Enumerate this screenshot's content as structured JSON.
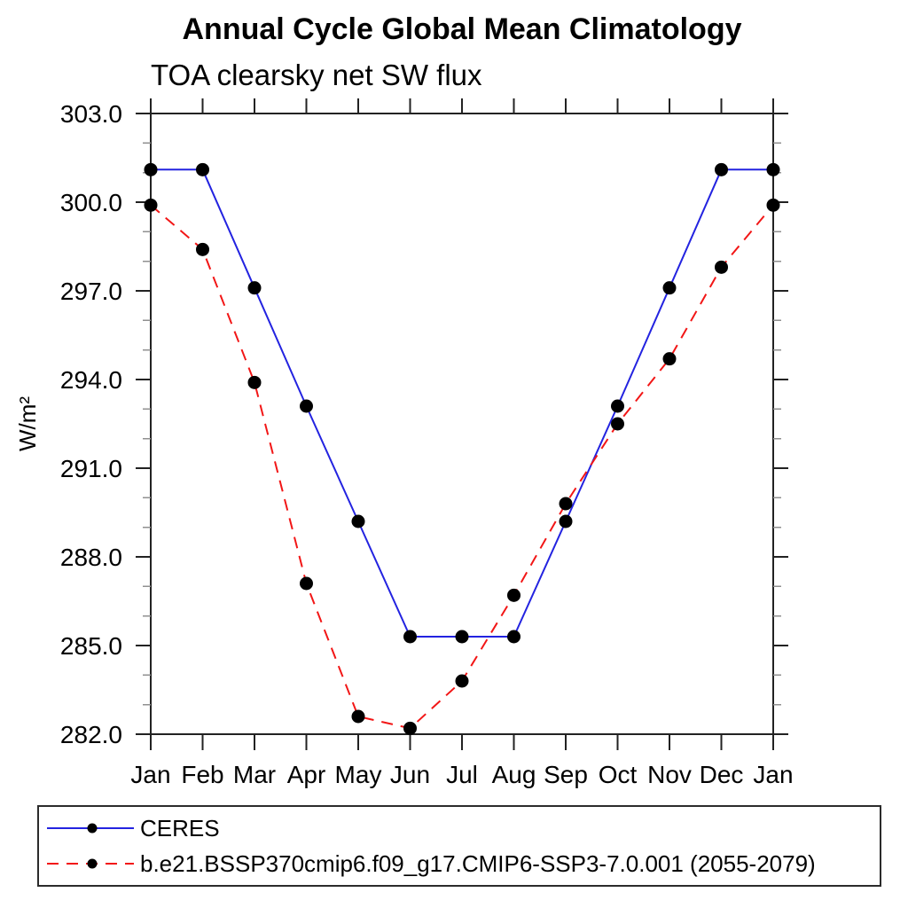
{
  "chart_data": {
    "type": "line",
    "title": "Annual Cycle Global Mean Climatology",
    "subtitle": "TOA clearsky net SW flux",
    "ylabel": "W/m²",
    "xlabel": "",
    "ylim": [
      282.0,
      303.0
    ],
    "ytick_major_interval": 3.0,
    "ytick_minor_interval": 1.0,
    "ytick_labels": [
      "303.0",
      "300.0",
      "297.0",
      "294.0",
      "291.0",
      "288.0",
      "285.0",
      "282.0"
    ],
    "ytick_values": [
      303.0,
      300.0,
      297.0,
      294.0,
      291.0,
      288.0,
      285.0,
      282.0
    ],
    "grid": false,
    "legend_position": "bottom-box",
    "categories": [
      "Jan",
      "Feb",
      "Mar",
      "Apr",
      "May",
      "Jun",
      "Jul",
      "Aug",
      "Sep",
      "Oct",
      "Nov",
      "Dec",
      "Jan"
    ],
    "series": [
      {
        "name": "CERES",
        "color": "#2323e0",
        "line_style": "solid",
        "marker": "filled-circle",
        "marker_color": "#000000",
        "values": [
          301.1,
          301.1,
          297.1,
          293.1,
          289.2,
          285.3,
          285.3,
          285.3,
          289.2,
          293.1,
          297.1,
          301.1,
          301.1
        ]
      },
      {
        "name": "b.e21.BSSP370cmip6.f09_g17.CMIP6-SSP3-7.0.001 (2055-2079)",
        "color": "#f21616",
        "line_style": "dashed",
        "marker": "filled-circle",
        "marker_color": "#000000",
        "values": [
          299.9,
          298.4,
          293.9,
          287.1,
          282.6,
          282.2,
          283.8,
          286.7,
          289.8,
          292.5,
          294.7,
          297.8,
          299.9
        ]
      }
    ],
    "axis_color": "#222222",
    "minor_tick_color": "#909090",
    "text_color": "#000000"
  }
}
